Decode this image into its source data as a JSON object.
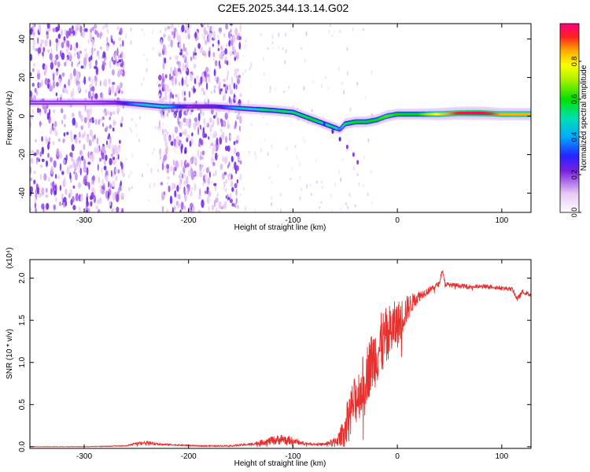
{
  "chart_data": [
    {
      "type": "heatmap",
      "title": "C2E5.2025.344.13.14.G02",
      "xlabel": "Height of straight line (km)",
      "ylabel": "Frequency (Hz)",
      "xlim": [
        -352,
        128
      ],
      "ylim": [
        -50,
        48
      ],
      "xticks": [
        -300,
        -200,
        -100,
        0,
        100
      ],
      "xtick_labels": [
        "-300",
        "-200",
        "-100",
        "0",
        "100"
      ],
      "yticks": [
        -40,
        -20,
        0,
        20,
        40
      ],
      "ytick_labels": [
        "-40",
        "-20",
        "0",
        "20",
        "40"
      ],
      "colorbar": {
        "label": "Normalized spectral amplitude",
        "range": [
          0,
          1
        ],
        "ticks": [
          0.0,
          0.2,
          0.4,
          0.6,
          0.8
        ],
        "tick_labels": [
          "0.0",
          "0.2",
          "0.4",
          "0.6",
          "0.8"
        ]
      },
      "noise_bands_km": [
        [
          -352,
          -262
        ],
        [
          -228,
          -150
        ]
      ],
      "ridge": {
        "name": "dominant frequency track",
        "x": [
          -352,
          -300,
          -270,
          -245,
          -225,
          -200,
          -175,
          -150,
          -120,
          -100,
          -90,
          -80,
          -70,
          -60,
          -55,
          -50,
          -40,
          -30,
          -20,
          -10,
          0,
          20,
          40,
          60,
          80,
          100,
          128
        ],
        "freq_hz": [
          7,
          7,
          7,
          6,
          5,
          5,
          5,
          4,
          3,
          2,
          0,
          -2,
          -4,
          -6,
          -7,
          -4,
          -3,
          -3,
          -2,
          0,
          1,
          1,
          1,
          1.5,
          1.5,
          1,
          1
        ],
        "amplitude": [
          0.15,
          0.15,
          0.2,
          0.45,
          0.5,
          0.2,
          0.25,
          0.45,
          0.55,
          0.55,
          0.55,
          0.6,
          0.5,
          0.55,
          0.35,
          0.55,
          0.6,
          0.6,
          0.6,
          0.65,
          0.6,
          0.6,
          0.8,
          0.95,
          1.0,
          0.85,
          0.85
        ]
      },
      "branch": {
        "name": "secondary falling branch",
        "x": [
          -70,
          -62,
          -55,
          -48,
          -42,
          -38
        ],
        "freq_hz": [
          -4,
          -8,
          -12,
          -16,
          -20,
          -24
        ],
        "amplitude": [
          0.2,
          0.15,
          0.15,
          0.1,
          0.1,
          0.1
        ]
      }
    },
    {
      "type": "line",
      "title": "",
      "xlabel": "Height of straight line (km)",
      "ylabel": "SNR (10 * v/v)",
      "y_multiplier_label": "(x10⁴)",
      "xlim": [
        -352,
        128
      ],
      "ylim": [
        -0.02,
        2.22
      ],
      "xticks": [
        -300,
        -200,
        -100,
        0,
        100
      ],
      "xtick_labels": [
        "-300",
        "-200",
        "-100",
        "0",
        "100"
      ],
      "yticks": [
        0.0,
        0.5,
        1.0,
        1.5,
        2.0
      ],
      "ytick_labels": [
        "0.0",
        "0.5",
        "1.0",
        "1.5",
        "2.0"
      ],
      "series": [
        {
          "name": "SNR",
          "color": "#e8312e",
          "x": [
            -352,
            -300,
            -260,
            -250,
            -240,
            -230,
            -210,
            -190,
            -160,
            -140,
            -120,
            -110,
            -100,
            -90,
            -80,
            -70,
            -60,
            -55,
            -50,
            -45,
            -40,
            -35,
            -30,
            -25,
            -20,
            -15,
            -10,
            -5,
            0,
            5,
            10,
            15,
            20,
            25,
            30,
            35,
            40,
            43,
            46,
            50,
            60,
            70,
            80,
            90,
            100,
            110,
            115,
            120,
            128
          ],
          "values": [
            0.0,
            0.0,
            0.01,
            0.04,
            0.05,
            0.03,
            0.02,
            0.01,
            0.01,
            0.03,
            0.07,
            0.09,
            0.07,
            0.04,
            0.03,
            0.03,
            0.06,
            0.1,
            0.25,
            0.45,
            0.55,
            0.68,
            0.85,
            1.0,
            1.1,
            1.22,
            1.3,
            1.4,
            1.45,
            1.55,
            1.65,
            1.72,
            1.78,
            1.82,
            1.85,
            1.9,
            1.93,
            2.1,
            1.93,
            1.92,
            1.91,
            1.9,
            1.9,
            1.9,
            1.88,
            1.87,
            1.75,
            1.84,
            1.8
          ],
          "noise_amplitude": [
            0.003,
            0.004,
            0.006,
            0.015,
            0.02,
            0.015,
            0.01,
            0.008,
            0.01,
            0.015,
            0.05,
            0.06,
            0.04,
            0.02,
            0.015,
            0.015,
            0.05,
            0.1,
            0.18,
            0.25,
            0.3,
            0.32,
            0.35,
            0.35,
            0.38,
            0.38,
            0.36,
            0.32,
            0.28,
            0.22,
            0.15,
            0.1,
            0.07,
            0.05,
            0.04,
            0.035,
            0.03,
            0.03,
            0.03,
            0.025,
            0.025,
            0.025,
            0.025,
            0.025,
            0.025,
            0.025,
            0.03,
            0.025,
            0.025
          ]
        }
      ]
    }
  ]
}
